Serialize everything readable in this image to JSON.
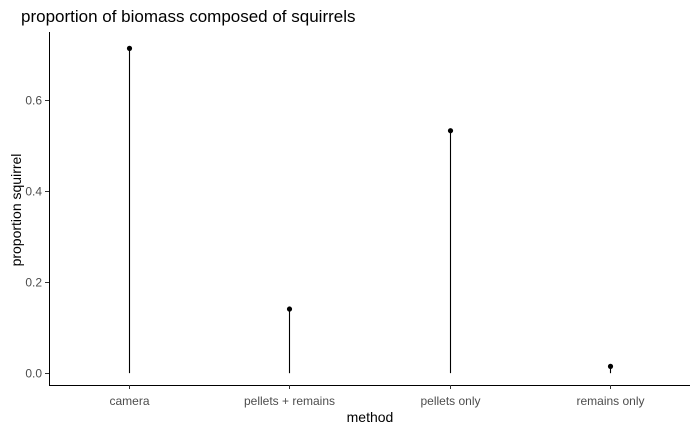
{
  "chart_data": {
    "type": "lollipop",
    "title": "proportion of biomass composed of squirrels",
    "xlabel": "method",
    "ylabel": "proportion squirrel",
    "categories": [
      "camera",
      "pellets + remains",
      "pellets only",
      "remains only"
    ],
    "values": [
      0.714,
      0.141,
      0.533,
      0.015
    ],
    "ylim": [
      -0.026,
      0.75
    ],
    "yticks": [
      0.0,
      0.2,
      0.4,
      0.6
    ],
    "ytick_labels": [
      "0.0",
      "0.2",
      "0.4",
      "0.6"
    ],
    "grid": false,
    "legend": "none",
    "colors": {
      "mark": "#000000",
      "axis": "#000000",
      "tick_text": "#4d4d4d",
      "background": "#ffffff"
    }
  }
}
